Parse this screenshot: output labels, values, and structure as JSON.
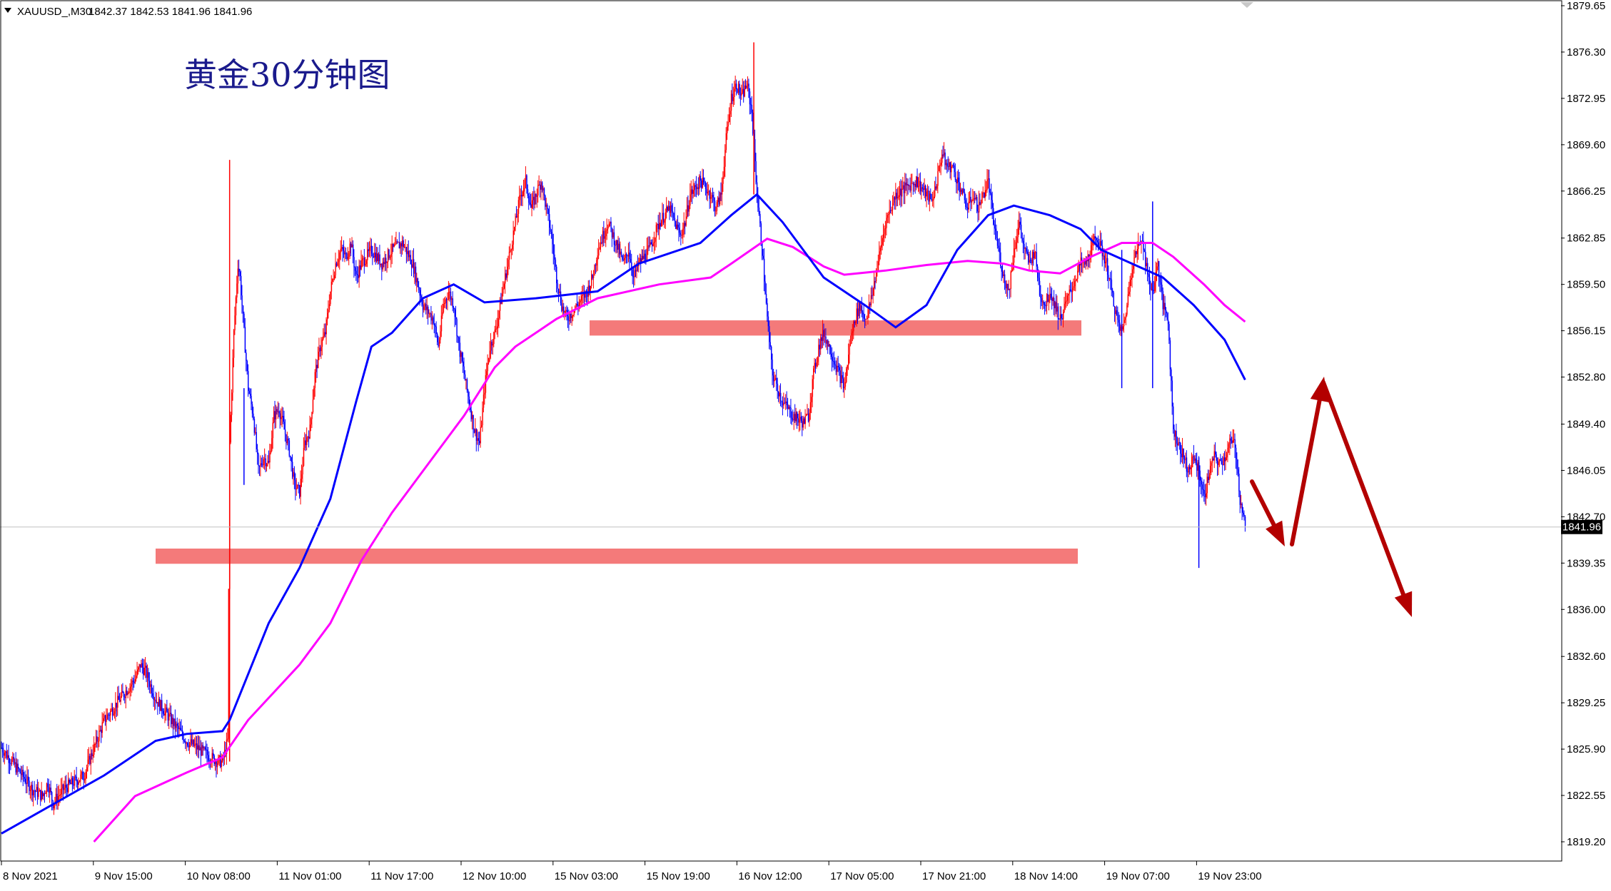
{
  "header": {
    "symbol": "XAUUSD_,M30",
    "ohlc": "1842.37 1842.53 1841.96 1841.96"
  },
  "title": "黄金30分钟图",
  "current_price": "1841.96",
  "colors": {
    "background": "#ffffff",
    "frame": "#000000",
    "bull": "#ff0000",
    "bear": "#0000ff",
    "ma_fast": "#0000ff",
    "ma_slow": "#ff00ff",
    "zone": "#f47a7a",
    "arrow": "#b30000",
    "grid": "#c0c0c0"
  },
  "chart_data": {
    "type": "candlestick",
    "symbol": "XAUUSD",
    "timeframe": "M30",
    "grid": false,
    "y_ticks": [
      "1879.65",
      "1876.30",
      "1872.95",
      "1869.60",
      "1866.25",
      "1862.85",
      "1859.50",
      "1856.15",
      "1852.80",
      "1849.40",
      "1846.05",
      "1842.70",
      "1839.35",
      "1836.00",
      "1832.60",
      "1829.25",
      "1825.90",
      "1822.55",
      "1819.20"
    ],
    "ylim": [
      1817.8,
      1880.0
    ],
    "x_ticks": [
      "8 Nov 2021",
      "9 Nov 15:00",
      "10 Nov 08:00",
      "11 Nov 01:00",
      "11 Nov 17:00",
      "12 Nov 10:00",
      "15 Nov 03:00",
      "15 Nov 19:00",
      "16 Nov 12:00",
      "17 Nov 05:00",
      "17 Nov 21:00",
      "18 Nov 14:00",
      "19 Nov 07:00",
      "19 Nov 23:00"
    ],
    "price_path": [
      [
        0,
        1826
      ],
      [
        10,
        1825
      ],
      [
        20,
        1824
      ],
      [
        30,
        1823
      ],
      [
        40,
        1822.5
      ],
      [
        45,
        1823.5
      ],
      [
        50,
        1822
      ],
      [
        60,
        1823
      ],
      [
        70,
        1823.5
      ],
      [
        80,
        1824
      ],
      [
        90,
        1826
      ],
      [
        100,
        1828
      ],
      [
        110,
        1829
      ],
      [
        120,
        1830
      ],
      [
        130,
        1831
      ],
      [
        135,
        1832
      ],
      [
        140,
        1831.5
      ],
      [
        150,
        1829.5
      ],
      [
        160,
        1828.5
      ],
      [
        170,
        1827.5
      ],
      [
        180,
        1826.5
      ],
      [
        190,
        1826
      ],
      [
        200,
        1825.5
      ],
      [
        210,
        1825
      ],
      [
        215,
        1825
      ],
      [
        220,
        1826.5
      ],
      [
        222,
        1848
      ],
      [
        226,
        1856
      ],
      [
        230,
        1861
      ],
      [
        232,
        1860
      ],
      [
        236,
        1856
      ],
      [
        240,
        1852
      ],
      [
        245,
        1850
      ],
      [
        250,
        1846
      ],
      [
        255,
        1847
      ],
      [
        260,
        1846.5
      ],
      [
        265,
        1850
      ],
      [
        270,
        1850.5
      ],
      [
        275,
        1849
      ],
      [
        280,
        1847.5
      ],
      [
        285,
        1845
      ],
      [
        290,
        1844.5
      ],
      [
        295,
        1848
      ],
      [
        300,
        1849
      ],
      [
        305,
        1853
      ],
      [
        310,
        1855
      ],
      [
        315,
        1856
      ],
      [
        320,
        1859
      ],
      [
        325,
        1861
      ],
      [
        330,
        1862
      ],
      [
        335,
        1861.5
      ],
      [
        340,
        1862.5
      ],
      [
        345,
        1860
      ],
      [
        350,
        1861
      ],
      [
        360,
        1862
      ],
      [
        370,
        1861
      ],
      [
        380,
        1862
      ],
      [
        390,
        1862.5
      ],
      [
        400,
        1861
      ],
      [
        410,
        1858
      ],
      [
        420,
        1857
      ],
      [
        425,
        1855
      ],
      [
        430,
        1858
      ],
      [
        435,
        1859
      ],
      [
        440,
        1858
      ],
      [
        445,
        1855
      ],
      [
        450,
        1853
      ],
      [
        455,
        1851
      ],
      [
        460,
        1849
      ],
      [
        465,
        1848
      ],
      [
        470,
        1852
      ],
      [
        475,
        1855
      ],
      [
        480,
        1856
      ],
      [
        485,
        1858
      ],
      [
        490,
        1860
      ],
      [
        495,
        1862
      ],
      [
        500,
        1864
      ],
      [
        505,
        1866
      ],
      [
        510,
        1867
      ],
      [
        515,
        1865
      ],
      [
        520,
        1866
      ],
      [
        525,
        1867
      ],
      [
        530,
        1865
      ],
      [
        535,
        1863
      ],
      [
        540,
        1860
      ],
      [
        545,
        1858
      ],
      [
        550,
        1857
      ],
      [
        560,
        1858
      ],
      [
        570,
        1859
      ],
      [
        575,
        1860
      ],
      [
        580,
        1862
      ],
      [
        585,
        1863
      ],
      [
        590,
        1864
      ],
      [
        600,
        1862
      ],
      [
        605,
        1861
      ],
      [
        610,
        1862
      ],
      [
        615,
        1860
      ],
      [
        620,
        1861
      ],
      [
        630,
        1862
      ],
      [
        640,
        1864
      ],
      [
        650,
        1865
      ],
      [
        660,
        1863
      ],
      [
        665,
        1864
      ],
      [
        670,
        1866
      ],
      [
        680,
        1867
      ],
      [
        690,
        1866
      ],
      [
        695,
        1865
      ],
      [
        700,
        1866
      ],
      [
        705,
        1870
      ],
      [
        710,
        1873
      ],
      [
        715,
        1874
      ],
      [
        720,
        1873
      ],
      [
        725,
        1874
      ],
      [
        730,
        1872
      ],
      [
        735,
        1866
      ],
      [
        740,
        1862
      ],
      [
        745,
        1857
      ],
      [
        750,
        1853
      ],
      [
        755,
        1852
      ],
      [
        760,
        1851
      ],
      [
        770,
        1850
      ],
      [
        780,
        1849.5
      ],
      [
        785,
        1850
      ],
      [
        790,
        1853
      ],
      [
        795,
        1855
      ],
      [
        800,
        1856
      ],
      [
        805,
        1855
      ],
      [
        810,
        1854
      ],
      [
        815,
        1853
      ],
      [
        820,
        1852
      ],
      [
        825,
        1855
      ],
      [
        830,
        1857
      ],
      [
        835,
        1858
      ],
      [
        840,
        1857
      ],
      [
        845,
        1858
      ],
      [
        850,
        1860
      ],
      [
        855,
        1862
      ],
      [
        860,
        1864
      ],
      [
        865,
        1865
      ],
      [
        870,
        1866
      ],
      [
        880,
        1866.5
      ],
      [
        890,
        1867
      ],
      [
        900,
        1866
      ],
      [
        905,
        1865.5
      ],
      [
        910,
        1867
      ],
      [
        915,
        1869
      ],
      [
        920,
        1868
      ],
      [
        925,
        1868
      ],
      [
        930,
        1867
      ],
      [
        935,
        1866
      ],
      [
        940,
        1865
      ],
      [
        945,
        1866
      ],
      [
        950,
        1865
      ],
      [
        955,
        1866
      ],
      [
        960,
        1867
      ],
      [
        965,
        1864
      ],
      [
        970,
        1862
      ],
      [
        975,
        1860
      ],
      [
        980,
        1859
      ],
      [
        985,
        1862
      ],
      [
        990,
        1864
      ],
      [
        995,
        1862
      ],
      [
        1000,
        1861
      ],
      [
        1005,
        1862
      ],
      [
        1010,
        1859
      ],
      [
        1015,
        1858
      ],
      [
        1020,
        1859
      ],
      [
        1025,
        1858
      ],
      [
        1030,
        1857
      ],
      [
        1035,
        1858
      ],
      [
        1040,
        1859
      ],
      [
        1045,
        1860
      ],
      [
        1050,
        1861
      ],
      [
        1055,
        1861
      ],
      [
        1060,
        1862
      ],
      [
        1065,
        1863
      ],
      [
        1070,
        1862
      ],
      [
        1075,
        1861
      ],
      [
        1080,
        1859
      ],
      [
        1085,
        1857
      ],
      [
        1090,
        1856
      ],
      [
        1095,
        1858
      ],
      [
        1100,
        1861
      ],
      [
        1105,
        1862
      ],
      [
        1110,
        1863
      ],
      [
        1115,
        1860
      ],
      [
        1120,
        1859
      ],
      [
        1125,
        1861
      ],
      [
        1130,
        1858
      ],
      [
        1135,
        1857
      ],
      [
        1140,
        1849
      ],
      [
        1145,
        1848
      ],
      [
        1150,
        1847
      ],
      [
        1155,
        1846
      ],
      [
        1160,
        1847
      ],
      [
        1165,
        1846
      ],
      [
        1170,
        1844
      ],
      [
        1175,
        1846
      ],
      [
        1180,
        1847
      ],
      [
        1185,
        1846.5
      ],
      [
        1190,
        1847
      ],
      [
        1195,
        1848
      ],
      [
        1200,
        1848
      ],
      [
        1205,
        1844
      ],
      [
        1210,
        1842
      ]
    ],
    "ma_fast": [
      [
        0,
        1819.8
      ],
      [
        100,
        1824
      ],
      [
        150,
        1826.5
      ],
      [
        180,
        1827
      ],
      [
        215,
        1827.2
      ],
      [
        222,
        1828
      ],
      [
        260,
        1835
      ],
      [
        290,
        1839
      ],
      [
        320,
        1844
      ],
      [
        345,
        1851
      ],
      [
        360,
        1855
      ],
      [
        380,
        1856
      ],
      [
        410,
        1858.5
      ],
      [
        440,
        1859.5
      ],
      [
        470,
        1858.2
      ],
      [
        520,
        1858.5
      ],
      [
        580,
        1859
      ],
      [
        620,
        1861
      ],
      [
        680,
        1862.5
      ],
      [
        710,
        1864.5
      ],
      [
        735,
        1866
      ],
      [
        760,
        1864
      ],
      [
        800,
        1860
      ],
      [
        840,
        1858
      ],
      [
        870,
        1856.4
      ],
      [
        900,
        1858
      ],
      [
        930,
        1862
      ],
      [
        960,
        1864.5
      ],
      [
        985,
        1865.2
      ],
      [
        1020,
        1864.5
      ],
      [
        1050,
        1863.5
      ],
      [
        1070,
        1862
      ],
      [
        1100,
        1861
      ],
      [
        1130,
        1860
      ],
      [
        1160,
        1858
      ],
      [
        1190,
        1855.5
      ],
      [
        1210,
        1852.6
      ]
    ],
    "ma_slow": [
      [
        90,
        1819.2
      ],
      [
        130,
        1822.5
      ],
      [
        180,
        1824.2
      ],
      [
        215,
        1825.3
      ],
      [
        240,
        1828
      ],
      [
        290,
        1832
      ],
      [
        320,
        1835
      ],
      [
        350,
        1839.5
      ],
      [
        380,
        1843
      ],
      [
        420,
        1847
      ],
      [
        450,
        1850
      ],
      [
        480,
        1853.5
      ],
      [
        500,
        1855
      ],
      [
        540,
        1857
      ],
      [
        580,
        1858.5
      ],
      [
        640,
        1859.5
      ],
      [
        690,
        1860
      ],
      [
        710,
        1861
      ],
      [
        745,
        1862.8
      ],
      [
        770,
        1862.2
      ],
      [
        800,
        1860.8
      ],
      [
        820,
        1860.2
      ],
      [
        860,
        1860.5
      ],
      [
        900,
        1860.9
      ],
      [
        940,
        1861.2
      ],
      [
        975,
        1861
      ],
      [
        1000,
        1860.5
      ],
      [
        1030,
        1860.3
      ],
      [
        1060,
        1861.5
      ],
      [
        1090,
        1862.5
      ],
      [
        1120,
        1862.5
      ],
      [
        1140,
        1861.5
      ],
      [
        1170,
        1859.5
      ],
      [
        1190,
        1858
      ],
      [
        1210,
        1856.8
      ]
    ],
    "zones": [
      {
        "x0": 826,
        "x1": 1515,
        "low": 1855.8,
        "high": 1856.9
      },
      {
        "x0": 218,
        "x1": 1510,
        "low": 1839.3,
        "high": 1840.4
      }
    ],
    "current_price": 1841.96
  }
}
